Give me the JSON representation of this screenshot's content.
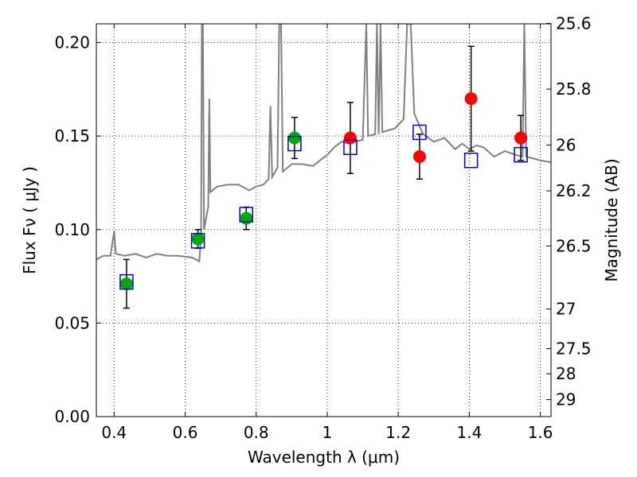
{
  "chart_data": {
    "type": "scatter",
    "xlabel": "Wavelength  λ (μm)",
    "ylabel": "Flux  Fν  ( μJy )",
    "ylabel_right": "Magnitude (AB)",
    "xlim": [
      0.35,
      1.63
    ],
    "ylim": [
      0.0,
      0.21
    ],
    "grid": true,
    "x_ticks": [
      0.4,
      0.6,
      0.8,
      1.0,
      1.2,
      1.4,
      1.6
    ],
    "x_tick_labels": [
      "0.4",
      "0.6",
      "0.8",
      "1",
      "1.2",
      "1.4",
      "1.6"
    ],
    "y_ticks": [
      0.0,
      0.05,
      0.1,
      0.15,
      0.2
    ],
    "y_tick_labels": [
      "0.00",
      "0.05",
      "0.10",
      "0.15",
      "0.20"
    ],
    "right_ticks": [
      {
        "label": "25.6",
        "flux": 0.2102
      },
      {
        "label": "25.8",
        "flux": 0.1751
      },
      {
        "label": "26",
        "flux": 0.1452
      },
      {
        "label": "26.2",
        "flux": 0.1207
      },
      {
        "label": "26.5",
        "flux": 0.0912
      },
      {
        "label": "27",
        "flux": 0.0575
      },
      {
        "label": "27.5",
        "flux": 0.0363
      },
      {
        "label": "28",
        "flux": 0.0229
      },
      {
        "label": "29",
        "flux": 0.0091
      }
    ],
    "series": [
      {
        "marker": "circle",
        "color": "#00aa00",
        "points": [
          {
            "x": 0.435,
            "y": 0.071,
            "err": 0.013
          },
          {
            "x": 0.636,
            "y": 0.095,
            "err": 0.005
          },
          {
            "x": 0.772,
            "y": 0.106,
            "err": 0.006
          },
          {
            "x": 0.908,
            "y": 0.149,
            "err": 0.011
          }
        ]
      },
      {
        "marker": "circle",
        "color": "#ff0000",
        "points": [
          {
            "x": 1.065,
            "y": 0.149,
            "err": 0.019
          },
          {
            "x": 1.26,
            "y": 0.139,
            "err": 0.012
          },
          {
            "x": 1.405,
            "y": 0.17,
            "err": 0.028
          },
          {
            "x": 1.545,
            "y": 0.149,
            "err": 0.012
          }
        ]
      },
      {
        "marker": "open-square",
        "color": "#0000cc",
        "points": [
          {
            "x": 0.435,
            "y": 0.072
          },
          {
            "x": 0.636,
            "y": 0.094
          },
          {
            "x": 0.772,
            "y": 0.108
          },
          {
            "x": 0.908,
            "y": 0.146
          },
          {
            "x": 1.065,
            "y": 0.144
          },
          {
            "x": 1.26,
            "y": 0.152
          },
          {
            "x": 1.405,
            "y": 0.137
          },
          {
            "x": 1.545,
            "y": 0.14
          }
        ]
      }
    ],
    "template_spectrum": {
      "color": "#808080",
      "points": [
        [
          0.35,
          0.084
        ],
        [
          0.37,
          0.086
        ],
        [
          0.39,
          0.086
        ],
        [
          0.4,
          0.099
        ],
        [
          0.405,
          0.087
        ],
        [
          0.43,
          0.086
        ],
        [
          0.46,
          0.087
        ],
        [
          0.49,
          0.085
        ],
        [
          0.52,
          0.087
        ],
        [
          0.55,
          0.086
        ],
        [
          0.58,
          0.086
        ],
        [
          0.62,
          0.085
        ],
        [
          0.64,
          0.083
        ],
        [
          0.645,
          0.098
        ],
        [
          0.647,
          0.21
        ],
        [
          0.65,
          0.21
        ],
        [
          0.653,
          0.1
        ],
        [
          0.665,
          0.112
        ],
        [
          0.668,
          0.17
        ],
        [
          0.671,
          0.12
        ],
        [
          0.69,
          0.123
        ],
        [
          0.72,
          0.124
        ],
        [
          0.75,
          0.124
        ],
        [
          0.78,
          0.121
        ],
        [
          0.8,
          0.123
        ],
        [
          0.82,
          0.124
        ],
        [
          0.835,
          0.127
        ],
        [
          0.84,
          0.166
        ],
        [
          0.845,
          0.128
        ],
        [
          0.86,
          0.133
        ],
        [
          0.865,
          0.21
        ],
        [
          0.87,
          0.21
        ],
        [
          0.875,
          0.131
        ],
        [
          0.9,
          0.135
        ],
        [
          0.93,
          0.135
        ],
        [
          0.96,
          0.134
        ],
        [
          0.98,
          0.137
        ],
        [
          1.0,
          0.14
        ],
        [
          1.02,
          0.144
        ],
        [
          1.04,
          0.147
        ],
        [
          1.06,
          0.146
        ],
        [
          1.08,
          0.147
        ],
        [
          1.1,
          0.148
        ],
        [
          1.11,
          0.21
        ],
        [
          1.115,
          0.15
        ],
        [
          1.135,
          0.151
        ],
        [
          1.14,
          0.21
        ],
        [
          1.145,
          0.151
        ],
        [
          1.15,
          0.21
        ],
        [
          1.155,
          0.152
        ],
        [
          1.17,
          0.153
        ],
        [
          1.19,
          0.154
        ],
        [
          1.205,
          0.157
        ],
        [
          1.215,
          0.159
        ],
        [
          1.225,
          0.21
        ],
        [
          1.235,
          0.21
        ],
        [
          1.245,
          0.162
        ],
        [
          1.27,
          0.151
        ],
        [
          1.3,
          0.147
        ],
        [
          1.33,
          0.149
        ],
        [
          1.36,
          0.143
        ],
        [
          1.38,
          0.146
        ],
        [
          1.4,
          0.143
        ],
        [
          1.42,
          0.145
        ],
        [
          1.44,
          0.144
        ],
        [
          1.47,
          0.139
        ],
        [
          1.5,
          0.142
        ],
        [
          1.53,
          0.14
        ],
        [
          1.55,
          0.139
        ],
        [
          1.555,
          0.21
        ],
        [
          1.56,
          0.139
        ],
        [
          1.58,
          0.138
        ],
        [
          1.6,
          0.137
        ],
        [
          1.63,
          0.136
        ]
      ]
    }
  }
}
